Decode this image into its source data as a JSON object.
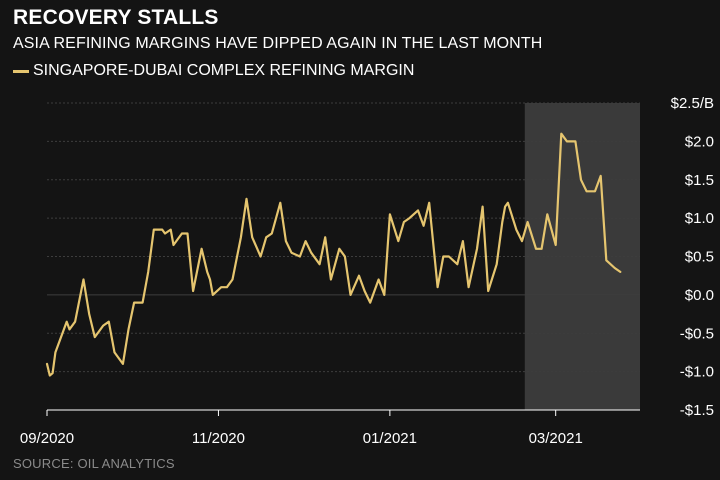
{
  "header": {
    "title": "RECOVERY STALLS",
    "subtitle": "ASIA REFINING MARGINS HAVE DIPPED AGAIN IN THE LAST MONTH"
  },
  "footer": {
    "source": "SOURCE: OIL ANALYTICS"
  },
  "colors": {
    "background": "#141414",
    "line": "#e5c56f",
    "highlight": "#3a3a3a",
    "grid": "#3d3d3d"
  },
  "chart_data": {
    "type": "line",
    "title": "RECOVERY STALLS",
    "subtitle": "ASIA REFINING MARGINS HAVE DIPPED AGAIN IN THE LAST MONTH",
    "xlabel": "",
    "ylabel": "",
    "x_ticks": [
      "09/2020",
      "11/2020",
      "01/2021",
      "03/2021"
    ],
    "y_ticks": [
      "$2.5/B",
      "$2.0",
      "$1.5",
      "$1.0",
      "$0.5",
      "$0.0",
      "-$0.5",
      "-$1.0",
      "-$1.5"
    ],
    "y_tick_values": [
      2.5,
      2.0,
      1.5,
      1.0,
      0.5,
      0.0,
      -0.5,
      -1.0,
      -1.5
    ],
    "ylim": [
      -1.5,
      2.5
    ],
    "xlim": [
      "2020-09-01",
      "2021-03-31"
    ],
    "grid": "horizontal",
    "legend_position": "top-left",
    "highlight_range": [
      "2021-02-18",
      "2021-03-31"
    ],
    "series": [
      {
        "name": "SINGAPORE-DUBAI COMPLEX REFINING MARGIN",
        "x": [
          "2020-09-01",
          "2020-09-02",
          "2020-09-03",
          "2020-09-04",
          "2020-09-08",
          "2020-09-09",
          "2020-09-11",
          "2020-09-14",
          "2020-09-16",
          "2020-09-18",
          "2020-09-21",
          "2020-09-23",
          "2020-09-25",
          "2020-09-28",
          "2020-09-30",
          "2020-10-02",
          "2020-10-05",
          "2020-10-07",
          "2020-10-09",
          "2020-10-12",
          "2020-10-13",
          "2020-10-15",
          "2020-10-16",
          "2020-10-19",
          "2020-10-21",
          "2020-10-23",
          "2020-10-26",
          "2020-10-28",
          "2020-10-29",
          "2020-10-30",
          "2020-11-02",
          "2020-11-04",
          "2020-11-06",
          "2020-11-09",
          "2020-11-11",
          "2020-11-13",
          "2020-11-16",
          "2020-11-18",
          "2020-11-20",
          "2020-11-23",
          "2020-11-25",
          "2020-11-27",
          "2020-11-30",
          "2020-12-02",
          "2020-12-04",
          "2020-12-07",
          "2020-12-09",
          "2020-12-11",
          "2020-12-14",
          "2020-12-16",
          "2020-12-18",
          "2020-12-21",
          "2020-12-23",
          "2020-12-25",
          "2020-12-28",
          "2020-12-30",
          "2021-01-01",
          "2021-01-04",
          "2021-01-06",
          "2021-01-08",
          "2021-01-11",
          "2021-01-13",
          "2021-01-15",
          "2021-01-18",
          "2021-01-20",
          "2021-01-22",
          "2021-01-25",
          "2021-01-27",
          "2021-01-29",
          "2021-02-01",
          "2021-02-03",
          "2021-02-05",
          "2021-02-08",
          "2021-02-10",
          "2021-02-11",
          "2021-02-12",
          "2021-02-15",
          "2021-02-17",
          "2021-02-19",
          "2021-02-22",
          "2021-02-24",
          "2021-02-26",
          "2021-03-01",
          "2021-03-03",
          "2021-03-05",
          "2021-03-08",
          "2021-03-10",
          "2021-03-12",
          "2021-03-15",
          "2021-03-17",
          "2021-03-19",
          "2021-03-22",
          "2021-03-24"
        ],
        "values": [
          -0.9,
          -1.05,
          -1.02,
          -0.75,
          -0.35,
          -0.45,
          -0.35,
          0.2,
          -0.25,
          -0.55,
          -0.4,
          -0.35,
          -0.75,
          -0.9,
          -0.45,
          -0.1,
          -0.1,
          0.3,
          0.85,
          0.85,
          0.8,
          0.85,
          0.65,
          0.8,
          0.8,
          0.05,
          0.6,
          0.3,
          0.2,
          0.0,
          0.1,
          0.1,
          0.2,
          0.75,
          1.25,
          0.75,
          0.5,
          0.75,
          0.8,
          1.2,
          0.7,
          0.55,
          0.5,
          0.7,
          0.55,
          0.4,
          0.75,
          0.2,
          0.6,
          0.5,
          0.0,
          0.25,
          0.05,
          -0.1,
          0.2,
          0.0,
          1.05,
          0.7,
          0.95,
          1.0,
          1.1,
          0.9,
          1.2,
          0.1,
          0.5,
          0.5,
          0.4,
          0.7,
          0.1,
          0.6,
          1.15,
          0.05,
          0.4,
          0.95,
          1.15,
          1.2,
          0.85,
          0.7,
          0.95,
          0.6,
          0.6,
          1.05,
          0.65,
          2.1,
          2.0,
          2.0,
          1.5,
          1.35,
          1.35,
          1.55,
          0.45,
          0.35,
          0.3
        ]
      }
    ]
  }
}
